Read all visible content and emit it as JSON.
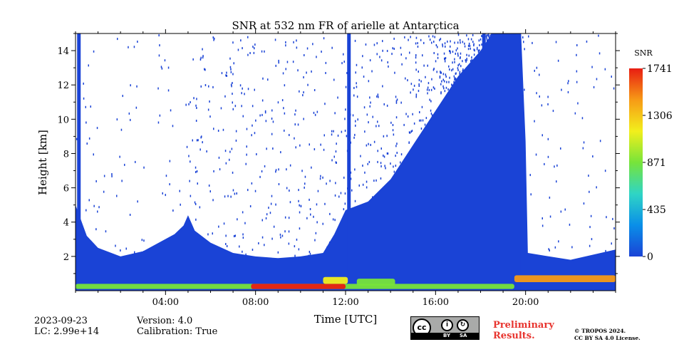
{
  "chart_data": {
    "type": "heatmap",
    "title": "SNR at 532 nm FR of arielle at Antarctica",
    "xlabel": "Time [UTC]",
    "ylabel": "Height [km]",
    "xlim": [
      0,
      24
    ],
    "ylim": [
      0,
      15
    ],
    "x_ticks": [
      {
        "value": 4,
        "label": "04:00"
      },
      {
        "value": 8,
        "label": "08:00"
      },
      {
        "value": 12,
        "label": "12:00"
      },
      {
        "value": 16,
        "label": "16:00"
      },
      {
        "value": 20,
        "label": "20:00"
      }
    ],
    "y_ticks": [
      {
        "value": 2,
        "label": "2"
      },
      {
        "value": 4,
        "label": "4"
      },
      {
        "value": 6,
        "label": "6"
      },
      {
        "value": 8,
        "label": "8"
      },
      {
        "value": 10,
        "label": "10"
      },
      {
        "value": 12,
        "label": "12"
      },
      {
        "value": 14,
        "label": "14"
      }
    ],
    "colorbar": {
      "label": "SNR",
      "min": 0,
      "max": 1741,
      "ticks": [
        {
          "value": 0,
          "label": "0"
        },
        {
          "value": 435,
          "label": "435"
        },
        {
          "value": 871,
          "label": "871"
        },
        {
          "value": 1306,
          "label": "1306"
        },
        {
          "value": 1741,
          "label": "1741"
        }
      ],
      "colors": [
        "#1a43d6",
        "#0a8fe8",
        "#2fd5c5",
        "#77e43a",
        "#f2ef1c",
        "#f79a16",
        "#e81d12"
      ]
    },
    "signal_top_km": [
      {
        "t": 0.0,
        "h": 5.0
      },
      {
        "t": 0.5,
        "h": 3.2
      },
      {
        "t": 1.0,
        "h": 2.5
      },
      {
        "t": 2.0,
        "h": 2.0
      },
      {
        "t": 3.0,
        "h": 2.3
      },
      {
        "t": 3.7,
        "h": 2.8
      },
      {
        "t": 4.4,
        "h": 3.3
      },
      {
        "t": 4.8,
        "h": 3.8
      },
      {
        "t": 5.0,
        "h": 4.4
      },
      {
        "t": 5.3,
        "h": 3.5
      },
      {
        "t": 6.0,
        "h": 2.8
      },
      {
        "t": 7.0,
        "h": 2.2
      },
      {
        "t": 8.0,
        "h": 2.0
      },
      {
        "t": 9.0,
        "h": 1.9
      },
      {
        "t": 10.0,
        "h": 2.0
      },
      {
        "t": 11.0,
        "h": 2.2
      },
      {
        "t": 11.5,
        "h": 3.3
      },
      {
        "t": 12.0,
        "h": 4.7
      },
      {
        "t": 13.0,
        "h": 5.2
      },
      {
        "t": 14.0,
        "h": 6.5
      },
      {
        "t": 15.0,
        "h": 8.5
      },
      {
        "t": 16.0,
        "h": 10.5
      },
      {
        "t": 17.0,
        "h": 12.5
      },
      {
        "t": 18.0,
        "h": 14.0
      },
      {
        "t": 18.5,
        "h": 15.0
      },
      {
        "t": 19.8,
        "h": 15.0
      },
      {
        "t": 20.0,
        "h": 8.7
      },
      {
        "t": 20.1,
        "h": 2.2
      },
      {
        "t": 22.0,
        "h": 1.8
      },
      {
        "t": 24.0,
        "h": 2.4
      }
    ],
    "full_column_times": [
      0.15,
      12.15,
      18.15,
      19.7
    ],
    "high_snr_layers": [
      {
        "t0": 0,
        "t1": 19.5,
        "h0": 0.1,
        "h1": 0.4,
        "snr": 900
      },
      {
        "t0": 7.8,
        "t1": 12.0,
        "h0": 0.1,
        "h1": 0.4,
        "snr": 1700
      },
      {
        "t0": 11.0,
        "t1": 12.1,
        "h0": 0.4,
        "h1": 0.8,
        "snr": 1300
      },
      {
        "t0": 12.5,
        "t1": 14.2,
        "h0": 0.3,
        "h1": 0.7,
        "snr": 1000
      },
      {
        "t0": 19.5,
        "t1": 24.0,
        "h0": 0.5,
        "h1": 0.9,
        "snr": 1450
      }
    ]
  },
  "footer": {
    "date": "2023-09-23",
    "lc": "LC: 2.99e+14",
    "version": "Version: 4.0",
    "calibration": "Calibration: True",
    "preliminary": "Preliminary Results.",
    "copyright_1": "© TROPOS 2024.",
    "copyright_2": "CC BY SA 4.0 License.",
    "license_badge": {
      "cc": "cc",
      "by": "BY",
      "sa": "SA"
    }
  }
}
